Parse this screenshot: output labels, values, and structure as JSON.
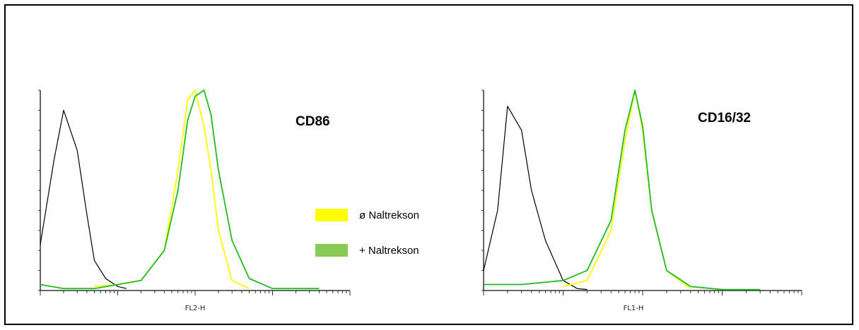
{
  "chart_data": [
    {
      "type": "line",
      "title": "CD86",
      "xlabel": "FL2-H",
      "ylabel": "",
      "x_scale": "log",
      "xlim": [
        1,
        10000
      ],
      "ylim": [
        0,
        100
      ],
      "series": [
        {
          "name": "",
          "color": "#000000",
          "x": [
            1,
            1.5,
            2,
            3,
            4,
            5,
            7,
            10,
            13
          ],
          "y": [
            23,
            65,
            90,
            70,
            38,
            15,
            6,
            2,
            1
          ]
        },
        {
          "name": "ø Naltrekson",
          "color": "#ffff00",
          "x": [
            5,
            10,
            20,
            40,
            60,
            80,
            100,
            130,
            160,
            200,
            300,
            500
          ],
          "y": [
            2,
            3,
            5,
            20,
            60,
            95,
            100,
            82,
            60,
            30,
            5,
            1
          ]
        },
        {
          "name": "+ Naltrekson",
          "color": "#22bb22",
          "x": [
            1,
            2,
            5,
            10,
            20,
            40,
            60,
            80,
            100,
            130,
            160,
            200,
            300,
            500,
            1000,
            4000
          ],
          "y": [
            3,
            1,
            1,
            3,
            5,
            20,
            50,
            85,
            97,
            100,
            88,
            60,
            25,
            6,
            1,
            1
          ]
        }
      ],
      "legend": [
        {
          "label": "ø Naltrekson",
          "color": "#ffff00"
        },
        {
          "label": "+ Naltrekson",
          "color": "#88cc55"
        }
      ]
    },
    {
      "type": "line",
      "title": "CD16/32",
      "xlabel": "FL1-H",
      "ylabel": "",
      "x_scale": "log",
      "xlim": [
        1,
        10000
      ],
      "ylim": [
        0,
        100
      ],
      "series": [
        {
          "name": "",
          "color": "#000000",
          "x": [
            1,
            1.5,
            2,
            3,
            4,
            6,
            10,
            15,
            20
          ],
          "y": [
            10,
            40,
            92,
            80,
            50,
            25,
            5,
            1,
            0.5
          ]
        },
        {
          "name": "",
          "color": "#ffff00",
          "x": [
            10,
            20,
            40,
            60,
            80,
            100,
            130,
            200,
            400
          ],
          "y": [
            2,
            5,
            30,
            75,
            100,
            80,
            40,
            10,
            1
          ]
        },
        {
          "name": "",
          "color": "#22bb22",
          "x": [
            1,
            3,
            10,
            20,
            40,
            60,
            80,
            100,
            130,
            200,
            400,
            1000,
            3000
          ],
          "y": [
            3,
            3,
            5,
            10,
            35,
            80,
            100,
            82,
            40,
            10,
            2,
            0.5,
            0.5
          ]
        }
      ]
    }
  ]
}
